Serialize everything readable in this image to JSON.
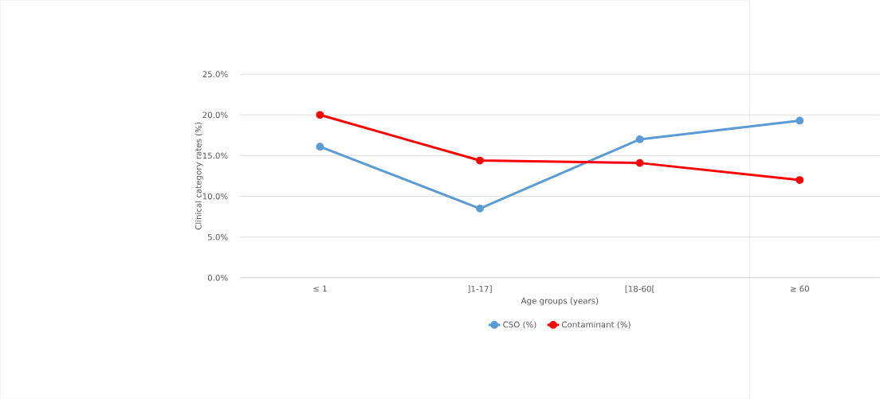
{
  "chart_data": {
    "type": "line",
    "xlabel": "Age groups (years)",
    "ylabel": "Clinical category rates (%)",
    "categories": [
      "≤ 1",
      "]1-17]",
      "[18-60[",
      "≥ 60"
    ],
    "series": [
      {
        "name": "CSO (%)",
        "color": "#5b9bd5",
        "values": [
          16.1,
          8.5,
          17.0,
          19.3
        ]
      },
      {
        "name": "Contaminant (%)",
        "color": "#ff0000",
        "values": [
          20.0,
          14.4,
          14.1,
          12.0
        ]
      }
    ],
    "ylim": [
      0,
      25
    ],
    "yticks": [
      {
        "value": 0,
        "label": "0.0%"
      },
      {
        "value": 5,
        "label": "5.0%"
      },
      {
        "value": 10,
        "label": "10.0%"
      },
      {
        "value": 15,
        "label": "15.0%"
      },
      {
        "value": 20,
        "label": "20.0%"
      },
      {
        "value": 25,
        "label": "25.0%"
      }
    ],
    "grid": "y",
    "legend": "bottom",
    "marker": "circle",
    "line_style": "solid"
  }
}
